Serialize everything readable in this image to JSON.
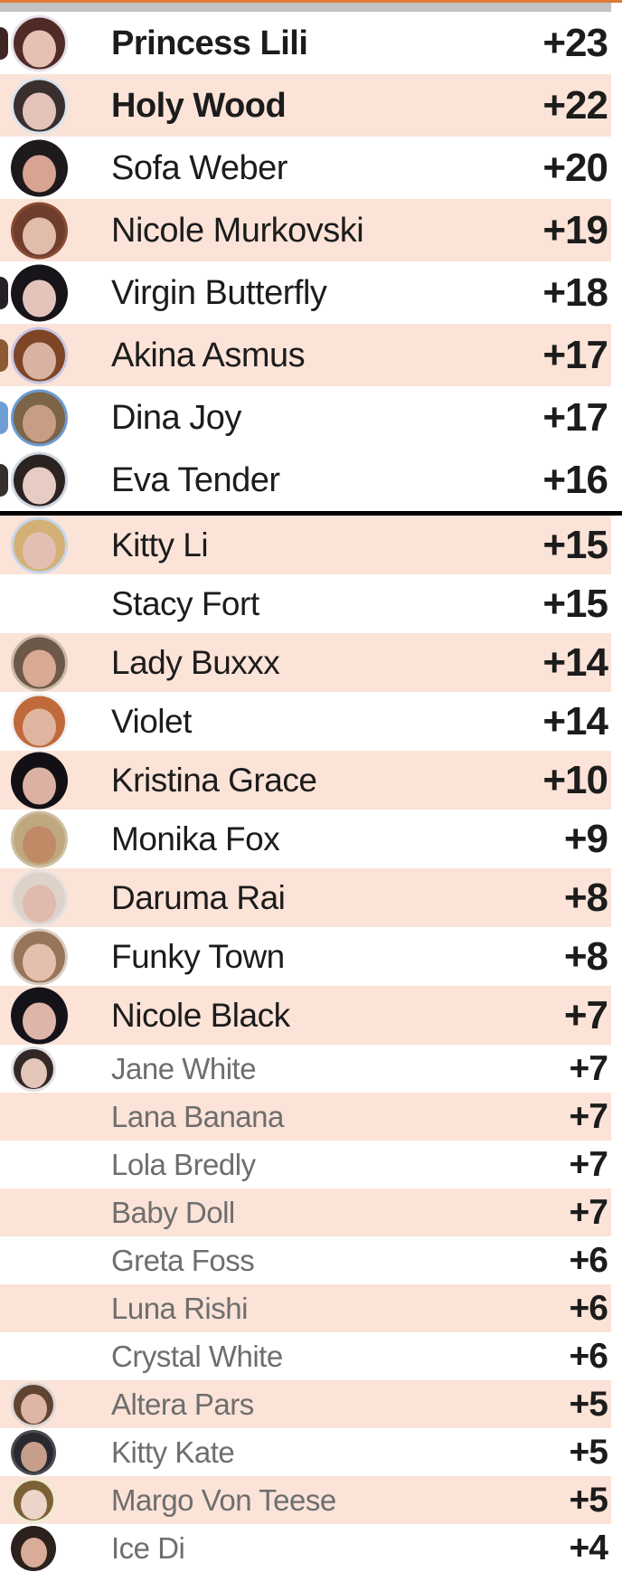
{
  "page": {
    "top_accent_color": "#dd7a3a",
    "top_bar_color": "#c2c1c3",
    "shaded_row_color": "#fbe3d8",
    "plain_row_color": "#ffffff",
    "divider_color": "#000000",
    "name_color": "#1c1c1c",
    "muted_name_color": "#6e6e6e",
    "score_color": "#1c1c1c"
  },
  "leaderboard": {
    "cutoff_after_index": 8,
    "rows": [
      {
        "name": "Princess Lili",
        "score": "+23",
        "section": "a",
        "shaded": false,
        "bold": true,
        "muted": false,
        "avatar": {
          "bg": "#e6e1e8",
          "hair": "#4f2b28",
          "skin": "#e6c0b2"
        },
        "sliver": "#3f2624"
      },
      {
        "name": "Holy Wood",
        "score": "+22",
        "section": "a",
        "shaded": true,
        "bold": true,
        "muted": false,
        "avatar": {
          "bg": "#d9e3ee",
          "hair": "#3a2f2e",
          "skin": "#e3c3b9"
        },
        "sliver": null
      },
      {
        "name": "Sofa Weber",
        "score": "+20",
        "section": "a",
        "shaded": false,
        "bold": false,
        "muted": false,
        "avatar": {
          "bg": "#1e191b",
          "hair": "#1e191b",
          "skin": "#d7a492"
        },
        "sliver": null
      },
      {
        "name": "Nicole Murkovski",
        "score": "+19",
        "section": "a",
        "shaded": true,
        "bold": false,
        "muted": false,
        "avatar": {
          "bg": "#8a4a33",
          "hair": "#6e3d2c",
          "skin": "#e2bcab"
        },
        "sliver": null
      },
      {
        "name": "Virgin Butterfly",
        "score": "+18",
        "section": "a",
        "shaded": false,
        "bold": false,
        "muted": false,
        "avatar": {
          "bg": "#17141a",
          "hair": "#17141a",
          "skin": "#e4c4ba"
        },
        "sliver": "#242026"
      },
      {
        "name": "Akina Asmus",
        "score": "+17",
        "section": "a",
        "shaded": true,
        "bold": false,
        "muted": false,
        "avatar": {
          "bg": "#c9c6e4",
          "hair": "#7e4526",
          "skin": "#dab2a2"
        },
        "sliver": "#8c5a33"
      },
      {
        "name": "Dina Joy",
        "score": "+17",
        "section": "a",
        "shaded": false,
        "bold": false,
        "muted": false,
        "avatar": {
          "bg": "#6b9bd2",
          "hair": "#7b6448",
          "skin": "#c89d86"
        },
        "sliver": "#6f9ed4"
      },
      {
        "name": "Eva Tender",
        "score": "+16",
        "section": "a",
        "shaded": false,
        "bold": false,
        "muted": false,
        "avatar": {
          "bg": "#cfd8e2",
          "hair": "#2b2322",
          "skin": "#e6ccc2"
        },
        "sliver": "#35302f"
      },
      {
        "name": "Kitty Li",
        "score": "+15",
        "section": "b",
        "shaded": true,
        "bold": false,
        "muted": false,
        "avatar": {
          "bg": "#c5d6ea",
          "hair": "#d3b176",
          "skin": "#e2bfb2"
        },
        "sliver": null
      },
      {
        "name": "Stacy Fort",
        "score": "+15",
        "section": "b",
        "shaded": false,
        "bold": false,
        "muted": false,
        "avatar": null,
        "sliver": null
      },
      {
        "name": "Lady Buxxx",
        "score": "+14",
        "section": "b",
        "shaded": true,
        "bold": false,
        "muted": false,
        "avatar": {
          "bg": "#cbb9a8",
          "hair": "#6d5949",
          "skin": "#d8a993"
        },
        "sliver": null
      },
      {
        "name": "Violet",
        "score": "+14",
        "section": "b",
        "shaded": false,
        "bold": false,
        "muted": false,
        "avatar": {
          "bg": "#f4f1f2",
          "hair": "#c06a3c",
          "skin": "#e0b5a0"
        },
        "sliver": null
      },
      {
        "name": "Kristina Grace",
        "score": "+10",
        "section": "b",
        "shaded": true,
        "bold": false,
        "muted": false,
        "avatar": {
          "bg": "#121014",
          "hair": "#121014",
          "skin": "#dcb1a3"
        },
        "sliver": null
      },
      {
        "name": "Monika Fox",
        "score": "+9",
        "section": "b",
        "shaded": false,
        "bold": false,
        "muted": false,
        "avatar": {
          "bg": "#cdbfa4",
          "hair": "#bfa87e",
          "skin": "#c08a67"
        },
        "sliver": null
      },
      {
        "name": "Daruma Rai",
        "score": "+8",
        "section": "b",
        "shaded": true,
        "bold": false,
        "muted": false,
        "avatar": {
          "bg": "#e6e0de",
          "hair": "#ded2cb",
          "skin": "#e0baac"
        },
        "sliver": null
      },
      {
        "name": "Funky Town",
        "score": "+8",
        "section": "b",
        "shaded": false,
        "bold": false,
        "muted": false,
        "avatar": {
          "bg": "#d9cdc5",
          "hair": "#97755a",
          "skin": "#e4bfae"
        },
        "sliver": null
      },
      {
        "name": "Nicole Black",
        "score": "+7",
        "section": "b",
        "shaded": true,
        "bold": false,
        "muted": false,
        "avatar": {
          "bg": "#15131a",
          "hair": "#15131a",
          "skin": "#deb6a9"
        },
        "sliver": null
      },
      {
        "name": "Jane White",
        "score": "+7",
        "section": "c",
        "shaded": false,
        "bold": false,
        "muted": true,
        "avatar": {
          "bg": "#e3dfe2",
          "hair": "#322927",
          "skin": "#e3c5b9"
        },
        "sliver": null
      },
      {
        "name": "Lana Banana",
        "score": "+7",
        "section": "c",
        "shaded": true,
        "bold": false,
        "muted": true,
        "avatar": null,
        "sliver": null
      },
      {
        "name": "Lola Bredly",
        "score": "+7",
        "section": "c",
        "shaded": false,
        "bold": false,
        "muted": true,
        "avatar": null,
        "sliver": null
      },
      {
        "name": "Baby Doll",
        "score": "+7",
        "section": "c",
        "shaded": true,
        "bold": false,
        "muted": true,
        "avatar": null,
        "sliver": null
      },
      {
        "name": "Greta Foss",
        "score": "+6",
        "section": "c",
        "shaded": false,
        "bold": false,
        "muted": true,
        "avatar": null,
        "sliver": null
      },
      {
        "name": "Luna Rishi",
        "score": "+6",
        "section": "c",
        "shaded": true,
        "bold": false,
        "muted": true,
        "avatar": null,
        "sliver": null
      },
      {
        "name": "Crystal White",
        "score": "+6",
        "section": "c",
        "shaded": false,
        "bold": false,
        "muted": true,
        "avatar": null,
        "sliver": null
      },
      {
        "name": "Altera Pars",
        "score": "+5",
        "section": "c",
        "shaded": true,
        "bold": false,
        "muted": true,
        "avatar": {
          "bg": "#ddd6d2",
          "hair": "#5f4434",
          "skin": "#dfb5a5"
        },
        "sliver": null
      },
      {
        "name": "Kitty Kate",
        "score": "+5",
        "section": "c",
        "shaded": false,
        "bold": false,
        "muted": true,
        "avatar": {
          "bg": "#4a4a52",
          "hair": "#2a2930",
          "skin": "#c79e8c"
        },
        "sliver": null
      },
      {
        "name": "Margo Von Teese",
        "score": "+5",
        "section": "c",
        "shaded": true,
        "bold": false,
        "muted": true,
        "avatar": {
          "bg": "#eeeccf",
          "hair": "#7c6036",
          "skin": "#ecd4c8"
        },
        "sliver": null
      },
      {
        "name": "Ice Di",
        "score": "+4",
        "section": "c",
        "shaded": false,
        "bold": false,
        "muted": true,
        "avatar": {
          "bg": "#2c211d",
          "hair": "#2c211d",
          "skin": "#d9ab99"
        },
        "sliver": null
      }
    ]
  }
}
